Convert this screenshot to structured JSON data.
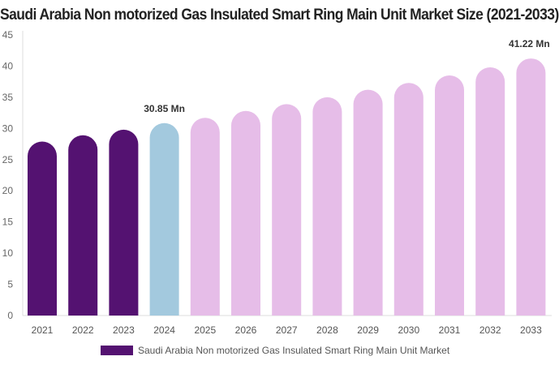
{
  "chart_data": {
    "type": "bar",
    "title": "Saudi Arabia Non motorized Gas Insulated Smart Ring Main Unit Market Size (2021-2033)",
    "categories": [
      "2021",
      "2022",
      "2023",
      "2024",
      "2025",
      "2026",
      "2027",
      "2028",
      "2029",
      "2030",
      "2031",
      "2032",
      "2033"
    ],
    "values": [
      27.9,
      28.9,
      29.8,
      30.85,
      31.7,
      32.8,
      33.9,
      35.0,
      36.2,
      37.3,
      38.5,
      39.8,
      41.22
    ],
    "colors": [
      "#541271",
      "#541271",
      "#541271",
      "#a3c9de",
      "#e6bde8",
      "#e6bde8",
      "#e6bde8",
      "#e6bde8",
      "#e6bde8",
      "#e6bde8",
      "#e6bde8",
      "#e6bde8",
      "#e6bde8"
    ],
    "data_labels": {
      "3": "30.85 Mn",
      "12": "41.22 Mn"
    },
    "yticks": [
      0,
      5,
      10,
      15,
      20,
      25,
      30,
      35,
      40,
      45
    ],
    "ylim": [
      0,
      45
    ],
    "xlabel": "",
    "ylabel": "",
    "grid": false,
    "legend": {
      "placement": "bottom",
      "entries": [
        "Saudi Arabia Non motorized Gas Insulated Smart Ring Main Unit Market"
      ],
      "color": "#541271"
    }
  }
}
